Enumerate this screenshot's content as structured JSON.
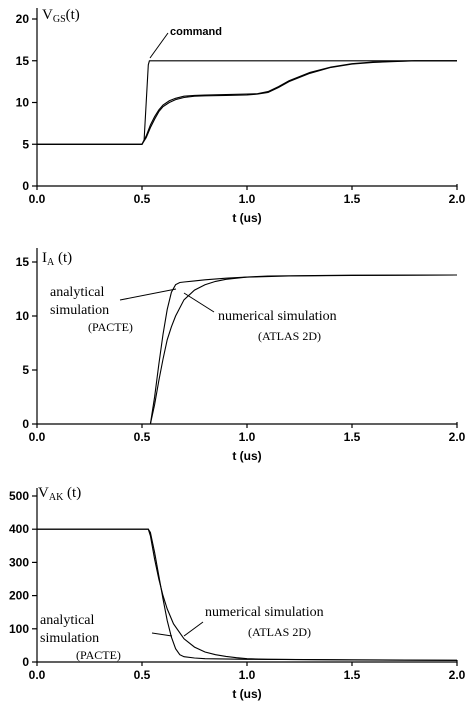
{
  "chart_data": [
    {
      "type": "line",
      "id": "vgs",
      "ylabel_main": "V",
      "ylabel_sub": "GS",
      "ylabel_tail": "(t)",
      "xlabel": "t (us)",
      "xlim": [
        0,
        2
      ],
      "ylim": [
        0,
        20
      ],
      "xticks": [
        "0.0",
        "0.5",
        "1.0",
        "1.5",
        "2.0"
      ],
      "yticks": [
        "0",
        "5",
        "10",
        "15",
        "20"
      ],
      "annotations": [
        {
          "text": "command"
        }
      ],
      "series": [
        {
          "x": [
            0,
            0.5,
            0.51,
            0.52,
            0.53,
            0.535,
            0.54,
            0.55,
            2.0
          ],
          "y": [
            5,
            5,
            5.5,
            10,
            14.5,
            15,
            15,
            15,
            15
          ]
        },
        {
          "x": [
            0,
            0.5,
            0.52,
            0.54,
            0.56,
            0.58,
            0.6,
            0.63,
            0.66,
            0.7,
            0.75,
            0.8,
            0.9,
            1.0,
            1.05,
            1.1,
            1.15,
            1.2,
            1.3,
            1.4,
            1.5,
            1.6,
            1.7,
            1.8,
            2.0
          ],
          "y": [
            5,
            5,
            5.8,
            7.0,
            8.0,
            8.9,
            9.5,
            10.0,
            10.35,
            10.6,
            10.75,
            10.8,
            10.85,
            10.9,
            11.0,
            11.2,
            11.8,
            12.5,
            13.5,
            14.2,
            14.6,
            14.8,
            14.9,
            15.0,
            15.0
          ]
        },
        {
          "x": [
            0,
            0.5,
            0.52,
            0.54,
            0.56,
            0.58,
            0.6,
            0.63,
            0.66,
            0.7,
            0.75,
            0.8,
            0.9,
            1.0,
            1.05,
            1.1,
            1.15,
            1.2,
            1.3,
            1.4,
            1.5,
            1.6,
            1.7,
            1.8,
            2.0
          ],
          "y": [
            5,
            5,
            6.0,
            7.3,
            8.3,
            9.1,
            9.7,
            10.2,
            10.5,
            10.75,
            10.85,
            10.9,
            10.95,
            11.0,
            11.05,
            11.3,
            11.9,
            12.6,
            13.6,
            14.25,
            14.65,
            14.85,
            14.95,
            15.0,
            15.0
          ]
        }
      ]
    },
    {
      "type": "line",
      "id": "ia",
      "ylabel_main": "I",
      "ylabel_sub": "A",
      "ylabel_tail": " (t)",
      "xlabel": "t (us)",
      "xlim": [
        0,
        2
      ],
      "ylim": [
        0,
        15
      ],
      "xticks": [
        "0.0",
        "0.5",
        "1.0",
        "1.5",
        "2.0"
      ],
      "yticks": [
        "0",
        "5",
        "10",
        "15"
      ],
      "annotations": [
        {
          "lines": [
            "analytical",
            "simulation",
            "(PACTE)"
          ]
        },
        {
          "lines": [
            "numerical simulation",
            "(ATLAS 2D)"
          ]
        }
      ],
      "series": [
        {
          "name": "analytical simulation (PACTE)",
          "x": [
            0,
            0.54,
            0.56,
            0.58,
            0.6,
            0.62,
            0.64,
            0.66,
            0.68,
            0.7,
            0.75,
            0.8,
            0.9,
            1.0,
            1.2,
            1.5,
            2.0
          ],
          "y": [
            0,
            0,
            2.5,
            5.5,
            8.3,
            10.6,
            12.2,
            12.9,
            13.1,
            13.15,
            13.25,
            13.35,
            13.5,
            13.6,
            13.7,
            13.75,
            13.8
          ]
        },
        {
          "name": "numerical simulation (ATLAS 2D)",
          "x": [
            0,
            0.54,
            0.56,
            0.58,
            0.6,
            0.62,
            0.64,
            0.66,
            0.7,
            0.75,
            0.8,
            0.85,
            0.9,
            1.0,
            1.1,
            1.2,
            1.5,
            2.0
          ],
          "y": [
            0,
            0,
            1.8,
            4.0,
            6.0,
            7.8,
            9.0,
            10.0,
            11.5,
            12.4,
            12.9,
            13.2,
            13.4,
            13.6,
            13.7,
            13.72,
            13.78,
            13.8
          ]
        }
      ]
    },
    {
      "type": "line",
      "id": "vak",
      "ylabel_main": "V",
      "ylabel_sub": "AK",
      "ylabel_tail": " (t)",
      "xlabel": "t (us)",
      "xlim": [
        0,
        2
      ],
      "ylim": [
        0,
        500
      ],
      "xticks": [
        "0.0",
        "0.5",
        "1.0",
        "1.5",
        "2.0"
      ],
      "yticks": [
        "0",
        "100",
        "200",
        "300",
        "400",
        "500"
      ],
      "annotations": [
        {
          "lines": [
            "analytical",
            "simulation",
            "(PACTE)"
          ]
        },
        {
          "lines": [
            "numerical simulation",
            "(ATLAS 2D)"
          ]
        }
      ],
      "series": [
        {
          "name": "analytical simulation (PACTE)",
          "x": [
            0,
            0.53,
            0.54,
            0.56,
            0.58,
            0.6,
            0.62,
            0.64,
            0.66,
            0.68,
            0.7,
            0.75,
            0.8,
            1.0,
            2.0
          ],
          "y": [
            400,
            400,
            390,
            330,
            260,
            190,
            125,
            75,
            40,
            22,
            16,
            12,
            10,
            8,
            5
          ]
        },
        {
          "name": "numerical simulation (ATLAS 2D)",
          "x": [
            0,
            0.53,
            0.54,
            0.56,
            0.58,
            0.6,
            0.62,
            0.65,
            0.7,
            0.75,
            0.8,
            0.85,
            0.9,
            0.95,
            1.0,
            1.1,
            1.5,
            2.0
          ],
          "y": [
            400,
            400,
            380,
            310,
            250,
            200,
            160,
            115,
            70,
            45,
            30,
            22,
            17,
            13,
            10,
            8,
            6,
            5
          ]
        }
      ]
    }
  ]
}
